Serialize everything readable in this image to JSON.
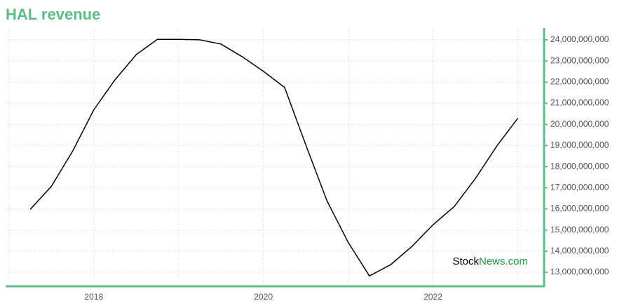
{
  "chart_data": {
    "type": "line",
    "title": "HAL revenue",
    "x": [
      2017.25,
      2017.5,
      2017.75,
      2018,
      2018.25,
      2018.5,
      2018.75,
      2019,
      2019.25,
      2019.5,
      2019.75,
      2020,
      2020.25,
      2020.5,
      2020.75,
      2021,
      2021.25,
      2021.5,
      2021.75,
      2022,
      2022.25,
      2022.5,
      2022.75,
      2023
    ],
    "series": [
      {
        "name": "HAL revenue",
        "color": "#000000",
        "values": [
          15980000000,
          17070000000,
          18730000000,
          20690000000,
          22110000000,
          23300000000,
          24020000000,
          24020000000,
          24000000000,
          23800000000,
          23200000000,
          22510000000,
          21750000000,
          19030000000,
          16380000000,
          14420000000,
          12830000000,
          13360000000,
          14220000000,
          15250000000,
          16110000000,
          17440000000,
          18960000000,
          20290000000
        ]
      }
    ],
    "xlim": [
      2016.96,
      2023.31
    ],
    "xticks": [
      2018,
      2020,
      2022
    ],
    "x_minor_ticks": [
      2017,
      2019,
      2021,
      2023
    ],
    "ylim": [
      12340000000,
      24560000000
    ],
    "yticks": [
      {
        "value": 13000000000,
        "label": "13,000,000,000"
      },
      {
        "value": 14000000000,
        "label": "14,000,000,000"
      },
      {
        "value": 15000000000,
        "label": "15,000,000,000"
      },
      {
        "value": 16000000000,
        "label": "16,000,000,000"
      },
      {
        "value": 17000000000,
        "label": "17,000,000,000"
      },
      {
        "value": 18000000000,
        "label": "18,000,000,000"
      },
      {
        "value": 19000000000,
        "label": "19,000,000,000"
      },
      {
        "value": 20000000000,
        "label": "20,000,000,000"
      },
      {
        "value": 21000000000,
        "label": "21,000,000,000"
      },
      {
        "value": 22000000000,
        "label": "22,000,000,000"
      },
      {
        "value": 23000000000,
        "label": "23,000,000,000"
      },
      {
        "value": 24000000000,
        "label": "24,000,000,000"
      }
    ],
    "grid": true,
    "watermark": [
      "Stock",
      "News.com"
    ]
  }
}
